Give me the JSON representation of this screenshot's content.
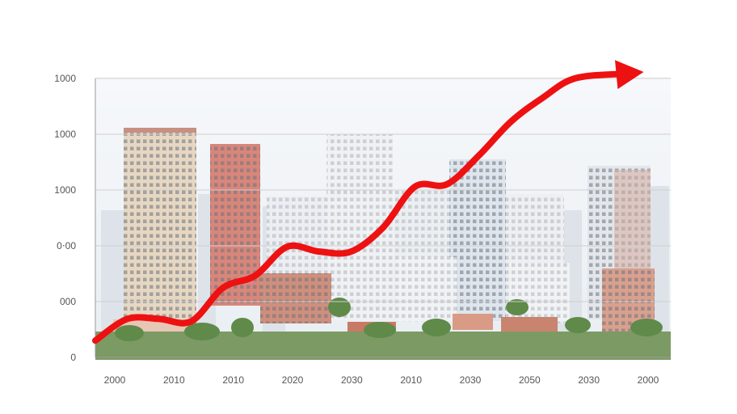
{
  "chart_data": {
    "type": "line",
    "title": "",
    "xlabel": "",
    "ylabel": "",
    "y_tick_labels": [
      "0",
      "000",
      "0⋅00",
      "1000",
      "1000",
      "1000"
    ],
    "x_tick_labels": [
      "2000",
      "2010",
      "2010",
      "2020",
      "2030",
      "2010",
      "2030",
      "2050",
      "2030",
      "2000"
    ],
    "grid": true,
    "legend": "none",
    "background": "photo of city skyline with high-rise apartment towers",
    "series": [
      {
        "color": "#ee1111",
        "arrow_head": true,
        "x": [
          0,
          0.5,
          1,
          1.5,
          2,
          2.5,
          3,
          3.5,
          4,
          4.5,
          5,
          5.5,
          6,
          6.5,
          7,
          7.5,
          8.3
        ],
        "values": [
          0.35,
          0.8,
          0.8,
          0.75,
          1.45,
          1.7,
          2.3,
          2.2,
          2.2,
          2.7,
          3.55,
          3.6,
          4.2,
          4.9,
          5.4,
          5.8,
          5.9
        ]
      }
    ],
    "ylim": [
      0,
      5.8
    ],
    "xlim": [
      0,
      9
    ]
  },
  "colors": {
    "grid": "#cfcfcf",
    "axis": "#999999",
    "trend": "#ee1111"
  }
}
